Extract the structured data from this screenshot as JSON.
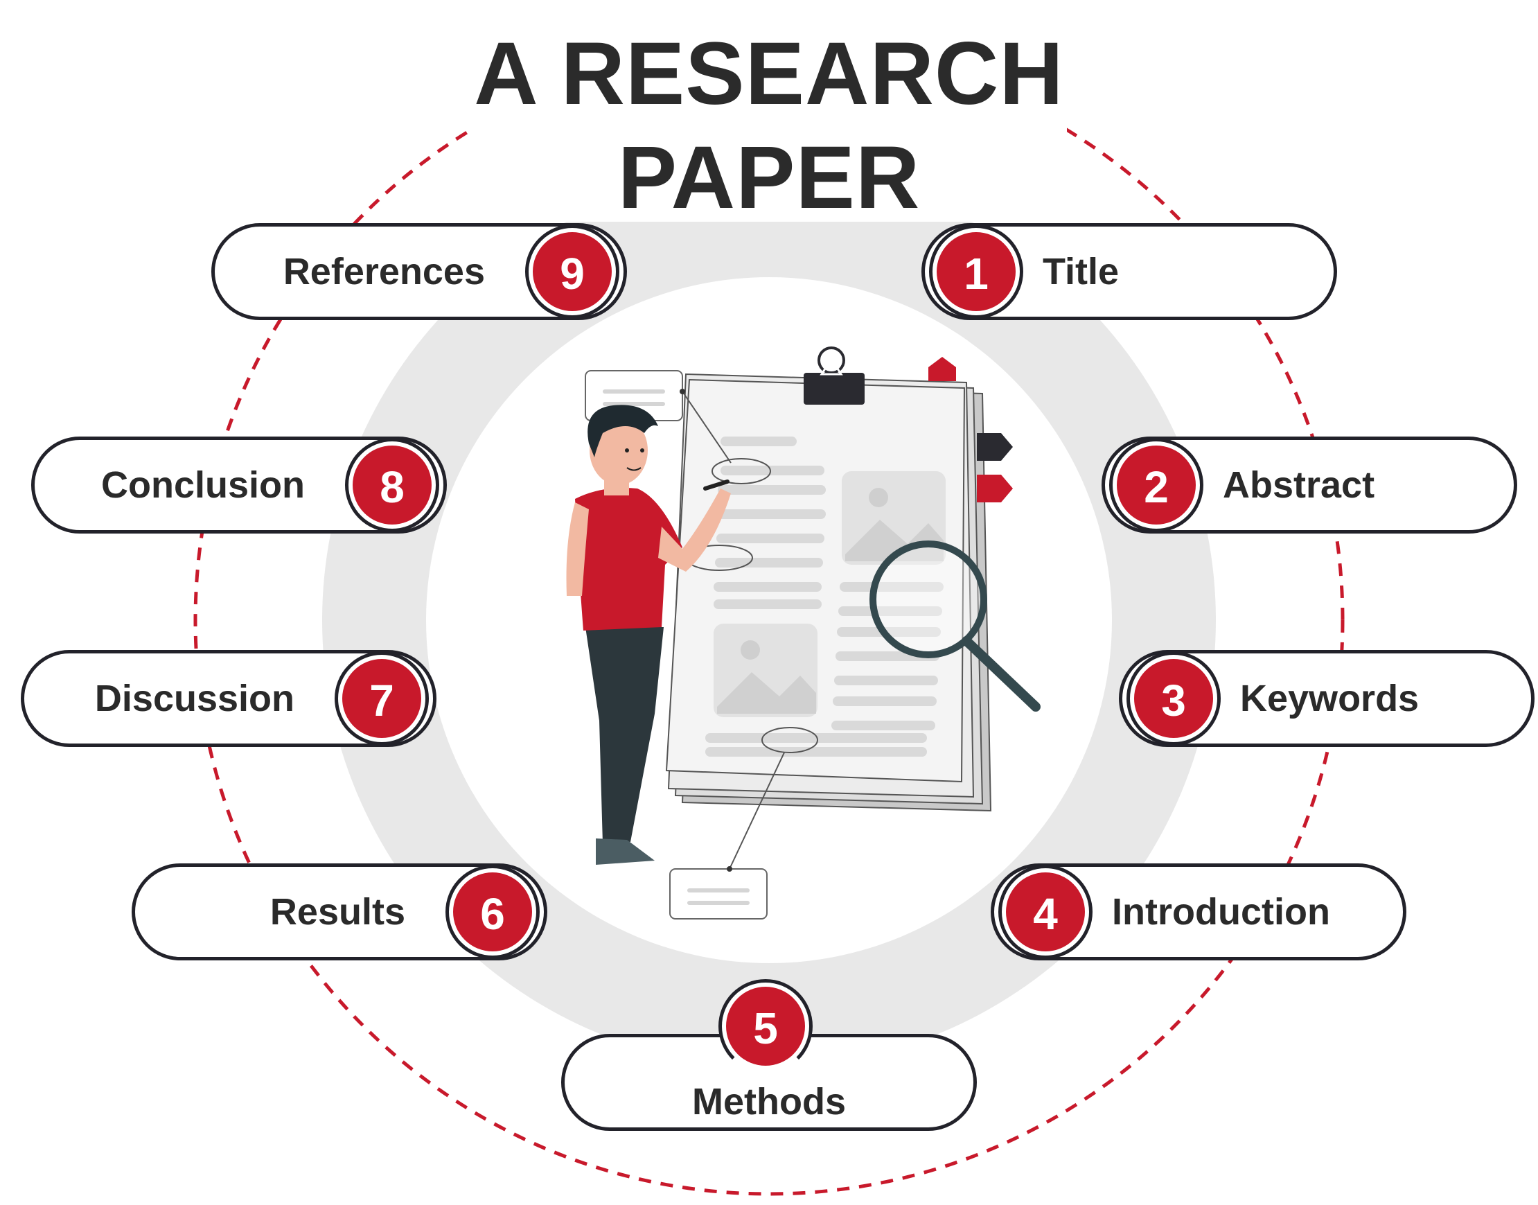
{
  "title_lines": [
    "A RESEARCH",
    "PAPER"
  ],
  "accent_color": "#c8192b",
  "outline_color": "#22222a",
  "steps": [
    {
      "num": "1",
      "label": "Title"
    },
    {
      "num": "2",
      "label": "Abstract"
    },
    {
      "num": "3",
      "label": "Keywords"
    },
    {
      "num": "4",
      "label": "Introduction"
    },
    {
      "num": "5",
      "label": "Methods"
    },
    {
      "num": "6",
      "label": "Results"
    },
    {
      "num": "7",
      "label": "Discussion"
    },
    {
      "num": "8",
      "label": "Conclusion"
    },
    {
      "num": "9",
      "label": "References"
    }
  ],
  "illustration": {
    "icons": [
      "person-writing-icon",
      "document-stack-icon",
      "magnifying-glass-icon",
      "binder-clip-icon",
      "image-placeholder-icon",
      "note-card-icon"
    ]
  }
}
